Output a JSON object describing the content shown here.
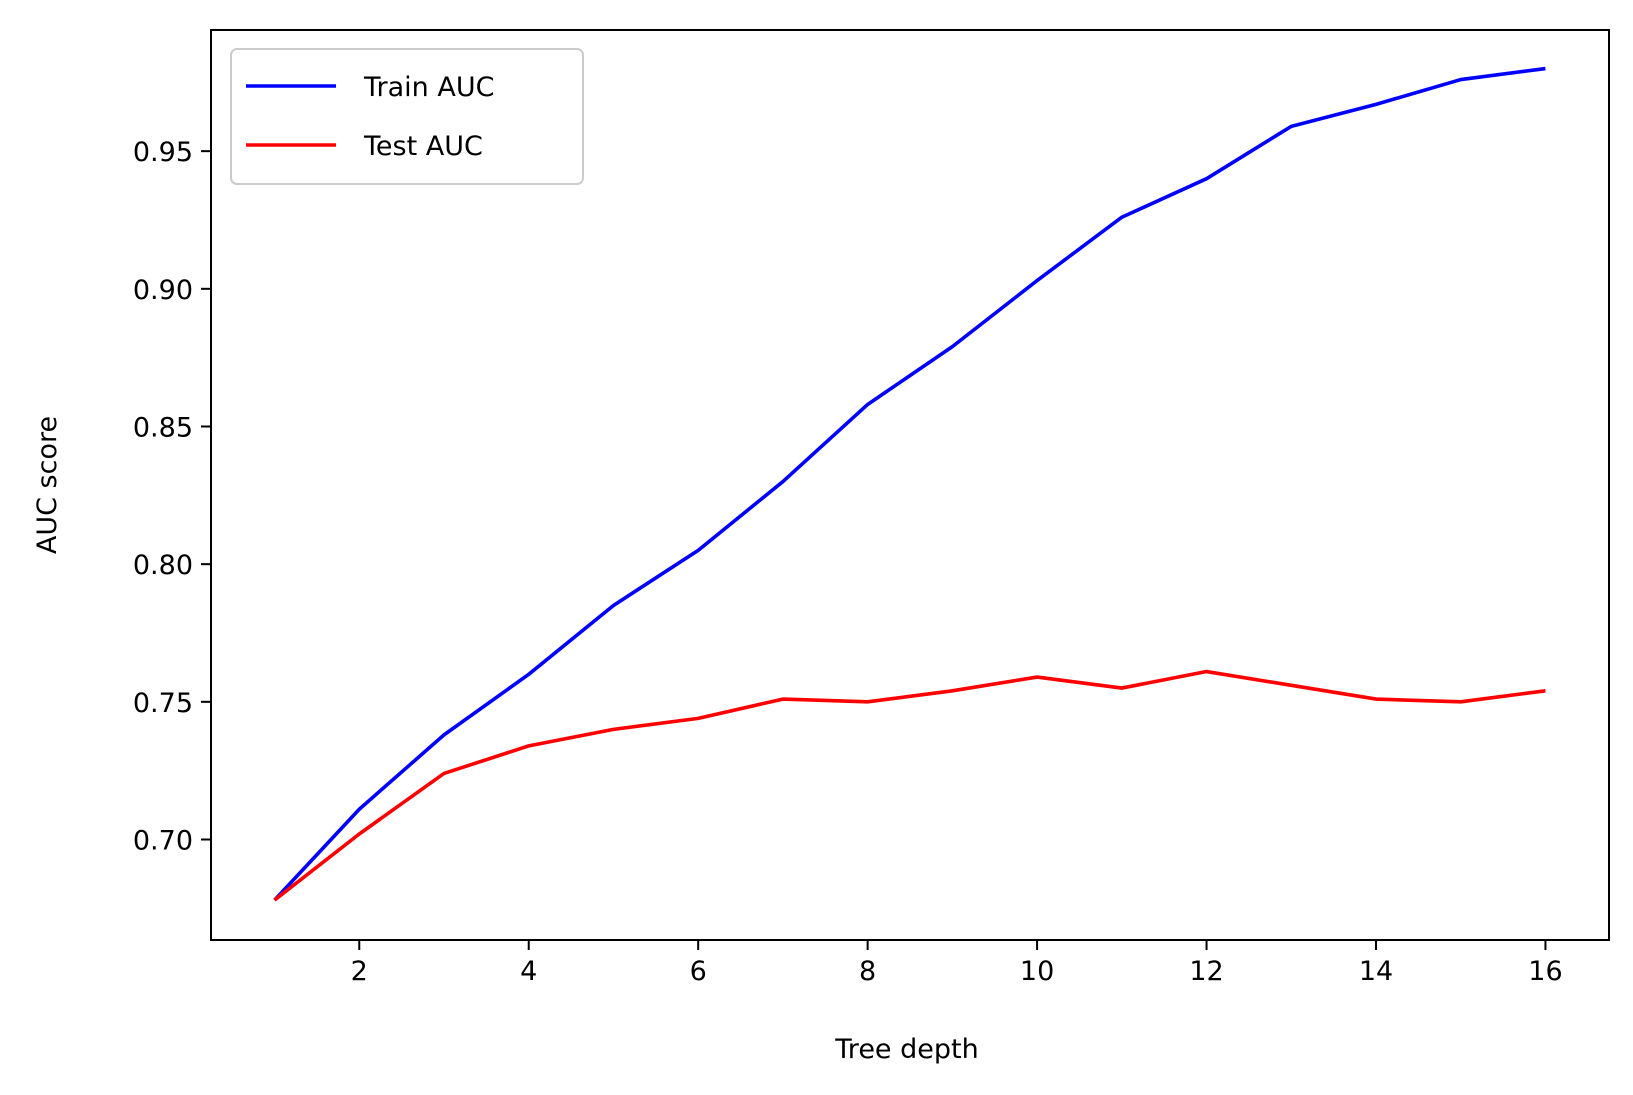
{
  "chart_data": {
    "type": "line",
    "title": "",
    "xlabel": "Tree depth",
    "ylabel": "AUC score",
    "x": [
      1,
      2,
      3,
      4,
      5,
      6,
      7,
      8,
      9,
      10,
      11,
      12,
      13,
      14,
      15,
      16
    ],
    "xlim": [
      0.25,
      16.75
    ],
    "ylim": [
      0.6635,
      0.994
    ],
    "xticks": [
      2,
      4,
      6,
      8,
      10,
      12,
      14,
      16
    ],
    "xtick_labels": [
      "2",
      "4",
      "6",
      "8",
      "10",
      "12",
      "14",
      "16"
    ],
    "yticks": [
      0.7,
      0.75,
      0.8,
      0.85,
      0.9,
      0.95
    ],
    "ytick_labels": [
      "0.70",
      "0.75",
      "0.80",
      "0.85",
      "0.90",
      "0.95"
    ],
    "grid": false,
    "legend_position": "top-left",
    "series": [
      {
        "name": "Train AUC",
        "color": "#0000ff",
        "values": [
          0.678,
          0.711,
          0.738,
          0.76,
          0.785,
          0.805,
          0.83,
          0.858,
          0.879,
          0.903,
          0.926,
          0.94,
          0.959,
          0.967,
          0.976,
          0.98
        ]
      },
      {
        "name": "Test AUC",
        "color": "#ff0000",
        "values": [
          0.678,
          0.702,
          0.724,
          0.734,
          0.74,
          0.744,
          0.751,
          0.75,
          0.754,
          0.759,
          0.755,
          0.761,
          0.756,
          0.751,
          0.75,
          0.754
        ]
      }
    ]
  }
}
